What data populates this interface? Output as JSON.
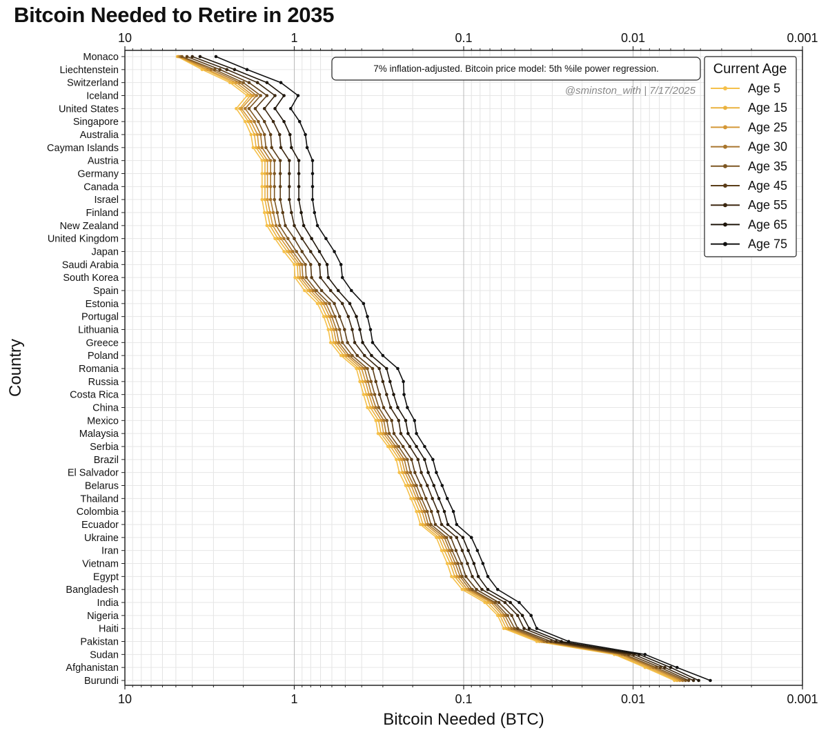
{
  "chart_data": {
    "type": "line",
    "title": "Bitcoin Needed to Retire in 2035",
    "xlabel": "Bitcoin Needed (BTC)",
    "ylabel": "Country",
    "x_scale": "log",
    "x_reversed": true,
    "xlim": [
      10,
      0.001
    ],
    "x_ticks": [
      "10",
      "1",
      "0.1",
      "0.01",
      "0.001"
    ],
    "x_tick_values": [
      10,
      1,
      0.1,
      0.01,
      0.001
    ],
    "grid": true,
    "legend_placement": "top-right",
    "legend_title": "Current Age",
    "annotation": "7% inflation-adjusted. Bitcoin price model: 5th %ile power regression.",
    "credit": "@sminston_with  |  7/17/2025",
    "categories": [
      "Monaco",
      "Liechtenstein",
      "Switzerland",
      "Iceland",
      "United States",
      "Singapore",
      "Australia",
      "Cayman Islands",
      "Austria",
      "Germany",
      "Canada",
      "Israel",
      "Finland",
      "New Zealand",
      "United Kingdom",
      "Japan",
      "Saudi Arabia",
      "South Korea",
      "Spain",
      "Estonia",
      "Portugal",
      "Lithuania",
      "Greece",
      "Poland",
      "Romania",
      "Russia",
      "Costa Rica",
      "China",
      "Mexico",
      "Malaysia",
      "Serbia",
      "Brazil",
      "El Salvador",
      "Belarus",
      "Thailand",
      "Colombia",
      "Ecuador",
      "Ukraine",
      "Iran",
      "Vietnam",
      "Egypt",
      "Bangladesh",
      "India",
      "Nigeria",
      "Haiti",
      "Pakistan",
      "Sudan",
      "Afghanistan",
      "Burundi"
    ],
    "series": [
      {
        "name": "Age 5",
        "color": "#f5c04a",
        "values": [
          4.9,
          3.5,
          2.4,
          1.9,
          2.2,
          1.95,
          1.8,
          1.75,
          1.55,
          1.55,
          1.55,
          1.55,
          1.5,
          1.45,
          1.3,
          1.15,
          1.0,
          0.99,
          0.87,
          0.73,
          0.67,
          0.63,
          0.61,
          0.53,
          0.43,
          0.41,
          0.39,
          0.37,
          0.33,
          0.32,
          0.28,
          0.25,
          0.24,
          0.22,
          0.205,
          0.19,
          0.18,
          0.145,
          0.135,
          0.125,
          0.118,
          0.102,
          0.075,
          0.063,
          0.058,
          0.037,
          0.0129,
          0.0085,
          0.0057
        ]
      },
      {
        "name": "Age 15",
        "color": "#eab23e",
        "values": [
          4.85,
          3.35,
          2.3,
          1.82,
          2.1,
          1.87,
          1.72,
          1.68,
          1.49,
          1.49,
          1.49,
          1.49,
          1.44,
          1.39,
          1.25,
          1.1,
          0.96,
          0.95,
          0.83,
          0.7,
          0.645,
          0.605,
          0.585,
          0.51,
          0.415,
          0.395,
          0.375,
          0.355,
          0.318,
          0.308,
          0.27,
          0.24,
          0.23,
          0.212,
          0.197,
          0.183,
          0.174,
          0.14,
          0.13,
          0.12,
          0.113,
          0.098,
          0.072,
          0.061,
          0.056,
          0.0357,
          0.0125,
          0.0082,
          0.0055
        ]
      },
      {
        "name": "Age 25",
        "color": "#d49736",
        "values": [
          4.8,
          3.25,
          2.2,
          1.75,
          2.05,
          1.8,
          1.65,
          1.62,
          1.44,
          1.44,
          1.44,
          1.44,
          1.39,
          1.34,
          1.2,
          1.06,
          0.93,
          0.92,
          0.8,
          0.675,
          0.62,
          0.585,
          0.565,
          0.49,
          0.4,
          0.38,
          0.362,
          0.342,
          0.306,
          0.297,
          0.26,
          0.232,
          0.222,
          0.204,
          0.19,
          0.176,
          0.167,
          0.135,
          0.125,
          0.116,
          0.109,
          0.095,
          0.069,
          0.059,
          0.054,
          0.0345,
          0.012,
          0.0079,
          0.0053
        ]
      },
      {
        "name": "Age 30",
        "color": "#a8752c",
        "values": [
          4.7,
          3.1,
          2.1,
          1.67,
          1.95,
          1.72,
          1.58,
          1.55,
          1.38,
          1.38,
          1.38,
          1.38,
          1.33,
          1.28,
          1.15,
          1.02,
          0.9,
          0.89,
          0.77,
          0.65,
          0.6,
          0.565,
          0.545,
          0.475,
          0.385,
          0.367,
          0.35,
          0.33,
          0.296,
          0.287,
          0.252,
          0.224,
          0.215,
          0.197,
          0.184,
          0.17,
          0.162,
          0.13,
          0.121,
          0.112,
          0.105,
          0.092,
          0.067,
          0.057,
          0.052,
          0.0335,
          0.0116,
          0.0076,
          0.0051
        ]
      },
      {
        "name": "Age 35",
        "color": "#7d5622",
        "values": [
          4.6,
          2.95,
          2.0,
          1.58,
          1.85,
          1.63,
          1.5,
          1.47,
          1.31,
          1.31,
          1.31,
          1.31,
          1.26,
          1.22,
          1.09,
          0.97,
          0.86,
          0.85,
          0.74,
          0.62,
          0.575,
          0.54,
          0.52,
          0.455,
          0.37,
          0.352,
          0.335,
          0.317,
          0.284,
          0.275,
          0.242,
          0.215,
          0.206,
          0.19,
          0.177,
          0.164,
          0.156,
          0.126,
          0.117,
          0.108,
          0.102,
          0.089,
          0.065,
          0.055,
          0.05,
          0.0322,
          0.0112,
          0.0073,
          0.0049
        ]
      },
      {
        "name": "Age 45",
        "color": "#5a3c17",
        "values": [
          4.3,
          2.75,
          1.85,
          1.45,
          1.7,
          1.5,
          1.38,
          1.36,
          1.21,
          1.21,
          1.21,
          1.21,
          1.17,
          1.13,
          1.0,
          0.9,
          0.8,
          0.79,
          0.69,
          0.58,
          0.54,
          0.505,
          0.485,
          0.425,
          0.345,
          0.33,
          0.314,
          0.297,
          0.266,
          0.258,
          0.228,
          0.203,
          0.194,
          0.179,
          0.167,
          0.155,
          0.147,
          0.119,
          0.111,
          0.103,
          0.097,
          0.084,
          0.062,
          0.052,
          0.048,
          0.0305,
          0.0106,
          0.0069,
          0.0047
        ]
      },
      {
        "name": "Age 55",
        "color": "#3b2710",
        "values": [
          4.0,
          2.5,
          1.65,
          1.3,
          1.5,
          1.33,
          1.22,
          1.2,
          1.07,
          1.07,
          1.07,
          1.07,
          1.04,
          1.0,
          0.9,
          0.8,
          0.71,
          0.7,
          0.61,
          0.52,
          0.48,
          0.455,
          0.44,
          0.385,
          0.315,
          0.3,
          0.285,
          0.27,
          0.242,
          0.235,
          0.208,
          0.186,
          0.178,
          0.164,
          0.153,
          0.142,
          0.135,
          0.11,
          0.102,
          0.095,
          0.089,
          0.078,
          0.057,
          0.048,
          0.044,
          0.0285,
          0.0099,
          0.0065,
          0.0044
        ]
      },
      {
        "name": "Age 65",
        "color": "#1e150a",
        "values": [
          3.6,
          2.25,
          1.45,
          1.15,
          1.3,
          1.15,
          1.06,
          1.04,
          0.94,
          0.94,
          0.94,
          0.94,
          0.91,
          0.88,
          0.79,
          0.71,
          0.64,
          0.63,
          0.55,
          0.47,
          0.43,
          0.41,
          0.395,
          0.35,
          0.285,
          0.272,
          0.259,
          0.245,
          0.22,
          0.213,
          0.19,
          0.17,
          0.162,
          0.15,
          0.14,
          0.13,
          0.124,
          0.101,
          0.094,
          0.087,
          0.082,
          0.072,
          0.053,
          0.045,
          0.041,
          0.0265,
          0.0092,
          0.006,
          0.0041
        ]
      },
      {
        "name": "Age 75",
        "color": "#111111",
        "values": [
          2.9,
          1.9,
          1.2,
          0.95,
          1.05,
          0.93,
          0.86,
          0.84,
          0.78,
          0.78,
          0.78,
          0.78,
          0.76,
          0.73,
          0.65,
          0.58,
          0.53,
          0.52,
          0.46,
          0.39,
          0.37,
          0.355,
          0.345,
          0.3,
          0.245,
          0.227,
          0.225,
          0.215,
          0.195,
          0.19,
          0.17,
          0.152,
          0.145,
          0.134,
          0.125,
          0.115,
          0.11,
          0.09,
          0.083,
          0.077,
          0.072,
          0.063,
          0.047,
          0.04,
          0.037,
          0.024,
          0.0085,
          0.0055,
          0.0035
        ]
      }
    ]
  }
}
